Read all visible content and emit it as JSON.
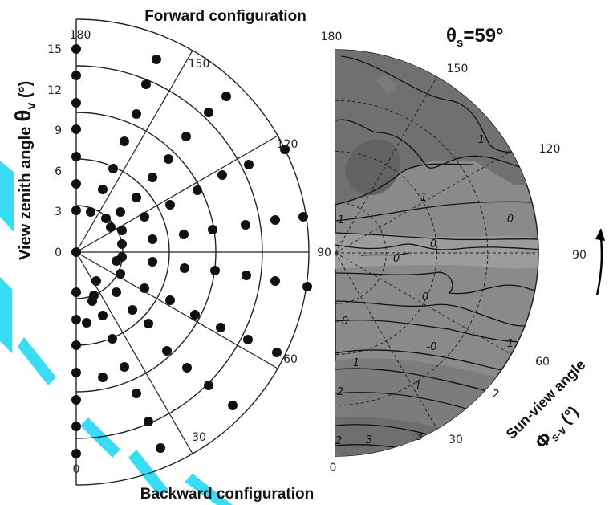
{
  "titles": {
    "forward": "Forward configuration",
    "backward": "Backward configuration",
    "y_axis_text": "View zenith angle",
    "y_axis_theta": "θ",
    "y_axis_sub": "v",
    "y_axis_unit": " (°)",
    "sun_zenith_theta": "θ",
    "sun_zenith_sub": "s",
    "sun_zenith_value": "=59°",
    "sun_view_text": "Sun-view angle",
    "sun_view_phi": "Φ",
    "sun_view_sub": "s-v",
    "sun_view_unit": " (°)"
  },
  "left_plot": {
    "radial_ticks": [
      "15",
      "12",
      "9",
      "6",
      "3",
      "0"
    ],
    "angle_top": "180",
    "angle_bottom": "0",
    "angle_labels": [
      "150",
      "120",
      "90",
      "60",
      "30"
    ],
    "rings_deg": [
      3,
      6,
      9,
      12,
      15
    ],
    "spokes_deg": [
      30,
      60,
      90,
      120,
      150
    ]
  },
  "right_plot": {
    "angle_top": "180",
    "angle_bottom": "0",
    "angle_labels": [
      "150",
      "120",
      "90",
      "60",
      "30"
    ],
    "contour_labels": [
      "1",
      "1",
      "1",
      "0",
      "0",
      "0",
      "0",
      "0",
      "-0",
      "1",
      "1",
      "1",
      "2",
      "2",
      "2",
      "3",
      "3"
    ],
    "colors": {
      "fill": "#8a8a8a",
      "dark_zone": "#6c6c6c",
      "mid_zone": "#7b7b7b",
      "light_zone": "#a0a0a0"
    }
  },
  "accents": {
    "watermark": "#16d6f2"
  }
}
